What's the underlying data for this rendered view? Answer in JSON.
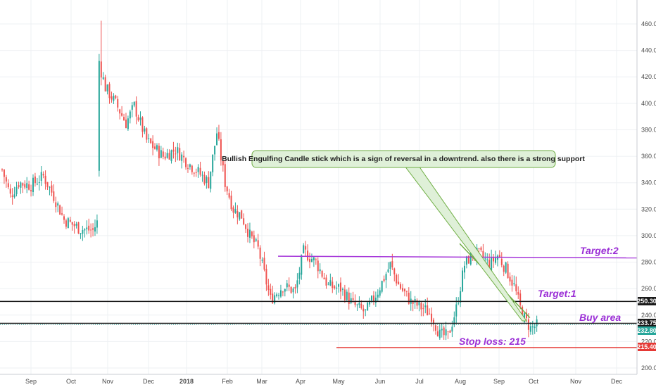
{
  "chart_data": {
    "type": "candlestick",
    "x_ticks": [
      "Sep",
      "Oct",
      "Nov",
      "Dec",
      "2018",
      "Feb",
      "Mar",
      "Apr",
      "May",
      "Jun",
      "Jul",
      "Aug",
      "Sep",
      "Oct",
      "Nov",
      "Dec"
    ],
    "y_ticks": [
      "200.00",
      "220.00",
      "240.00",
      "260.00",
      "280.00",
      "300.00",
      "320.00",
      "340.00",
      "360.00",
      "380.00",
      "400.00",
      "420.00",
      "440.00",
      "460.00"
    ],
    "ylim": [
      193,
      475
    ],
    "grid": true,
    "price_path": [
      [
        0,
        350
      ],
      [
        4,
        330
      ],
      [
        8,
        340
      ],
      [
        14,
        338
      ],
      [
        20,
        345
      ],
      [
        25,
        330
      ],
      [
        30,
        312
      ],
      [
        38,
        305
      ],
      [
        44,
        304
      ],
      [
        46,
        310
      ],
      [
        47,
        430
      ],
      [
        50,
        412
      ],
      [
        55,
        400
      ],
      [
        60,
        385
      ],
      [
        64,
        398
      ],
      [
        70,
        372
      ],
      [
        78,
        360
      ],
      [
        84,
        365
      ],
      [
        90,
        355
      ],
      [
        95,
        348
      ],
      [
        100,
        340
      ],
      [
        104,
        378
      ],
      [
        108,
        340
      ],
      [
        112,
        320
      ],
      [
        116,
        315
      ],
      [
        120,
        300
      ],
      [
        124,
        290
      ],
      [
        130,
        252
      ],
      [
        136,
        262
      ],
      [
        142,
        258
      ],
      [
        146,
        288
      ],
      [
        152,
        280
      ],
      [
        158,
        262
      ],
      [
        164,
        260
      ],
      [
        170,
        248
      ],
      [
        176,
        242
      ],
      [
        182,
        258
      ],
      [
        188,
        278
      ],
      [
        192,
        263
      ],
      [
        198,
        250
      ],
      [
        204,
        245
      ],
      [
        208,
        240
      ],
      [
        212,
        225
      ],
      [
        216,
        224
      ],
      [
        220,
        245
      ],
      [
        224,
        278
      ],
      [
        228,
        287
      ],
      [
        232,
        285
      ],
      [
        236,
        278
      ],
      [
        240,
        285
      ],
      [
        244,
        275
      ],
      [
        248,
        262
      ],
      [
        252,
        240
      ],
      [
        256,
        230
      ],
      [
        259,
        232
      ]
    ],
    "overlays": [
      {
        "name": "support",
        "type": "hline",
        "value": 250.3,
        "color": "#1a1a1a"
      },
      {
        "name": "buy-area",
        "type": "hline",
        "value": 233.75,
        "color": "#1a1a1a"
      },
      {
        "name": "stop-loss",
        "type": "hline",
        "value": 215.4,
        "color": "#e53935"
      },
      {
        "name": "target-2",
        "type": "line",
        "from": [
          134,
          284.5
        ],
        "to": [
          308,
          283.2
        ],
        "color": "#a536d9"
      },
      {
        "name": "green-line",
        "type": "line",
        "from": [
          222,
          294
        ],
        "to": [
          256,
          238
        ],
        "color": "#6fae44"
      },
      {
        "name": "small-cyan",
        "type": "hline",
        "value": 232.8,
        "color": "#26a69a"
      }
    ],
    "price_tags": [
      {
        "value": 250.3,
        "label": "250.30",
        "color": "#1a1a1a"
      },
      {
        "value": 233.75,
        "label": "233.75",
        "color": "#1a1a1a"
      },
      {
        "value": 232.8,
        "label": "232.80",
        "color": "#26a69a"
      },
      {
        "value": 215.4,
        "label": "215.40",
        "color": "#e53935"
      }
    ],
    "annotations": [
      {
        "text": "Target:2",
        "color": "#9b2fd6"
      },
      {
        "text": "Target:1",
        "color": "#9b2fd6"
      },
      {
        "text": "Buy area",
        "color": "#9b2fd6"
      },
      {
        "text": "Stop loss: 215",
        "color": "#9b2fd6"
      }
    ],
    "callout": {
      "text": "Bullish Engulfing Candle stick which is a sign of reversal in a downtrend. also there is a strong support",
      "fill": "#dff0d8",
      "stroke": "#6fae44"
    },
    "colors": {
      "up": "#26a69a",
      "down": "#ef5350",
      "grid": "#eef0f3"
    }
  }
}
